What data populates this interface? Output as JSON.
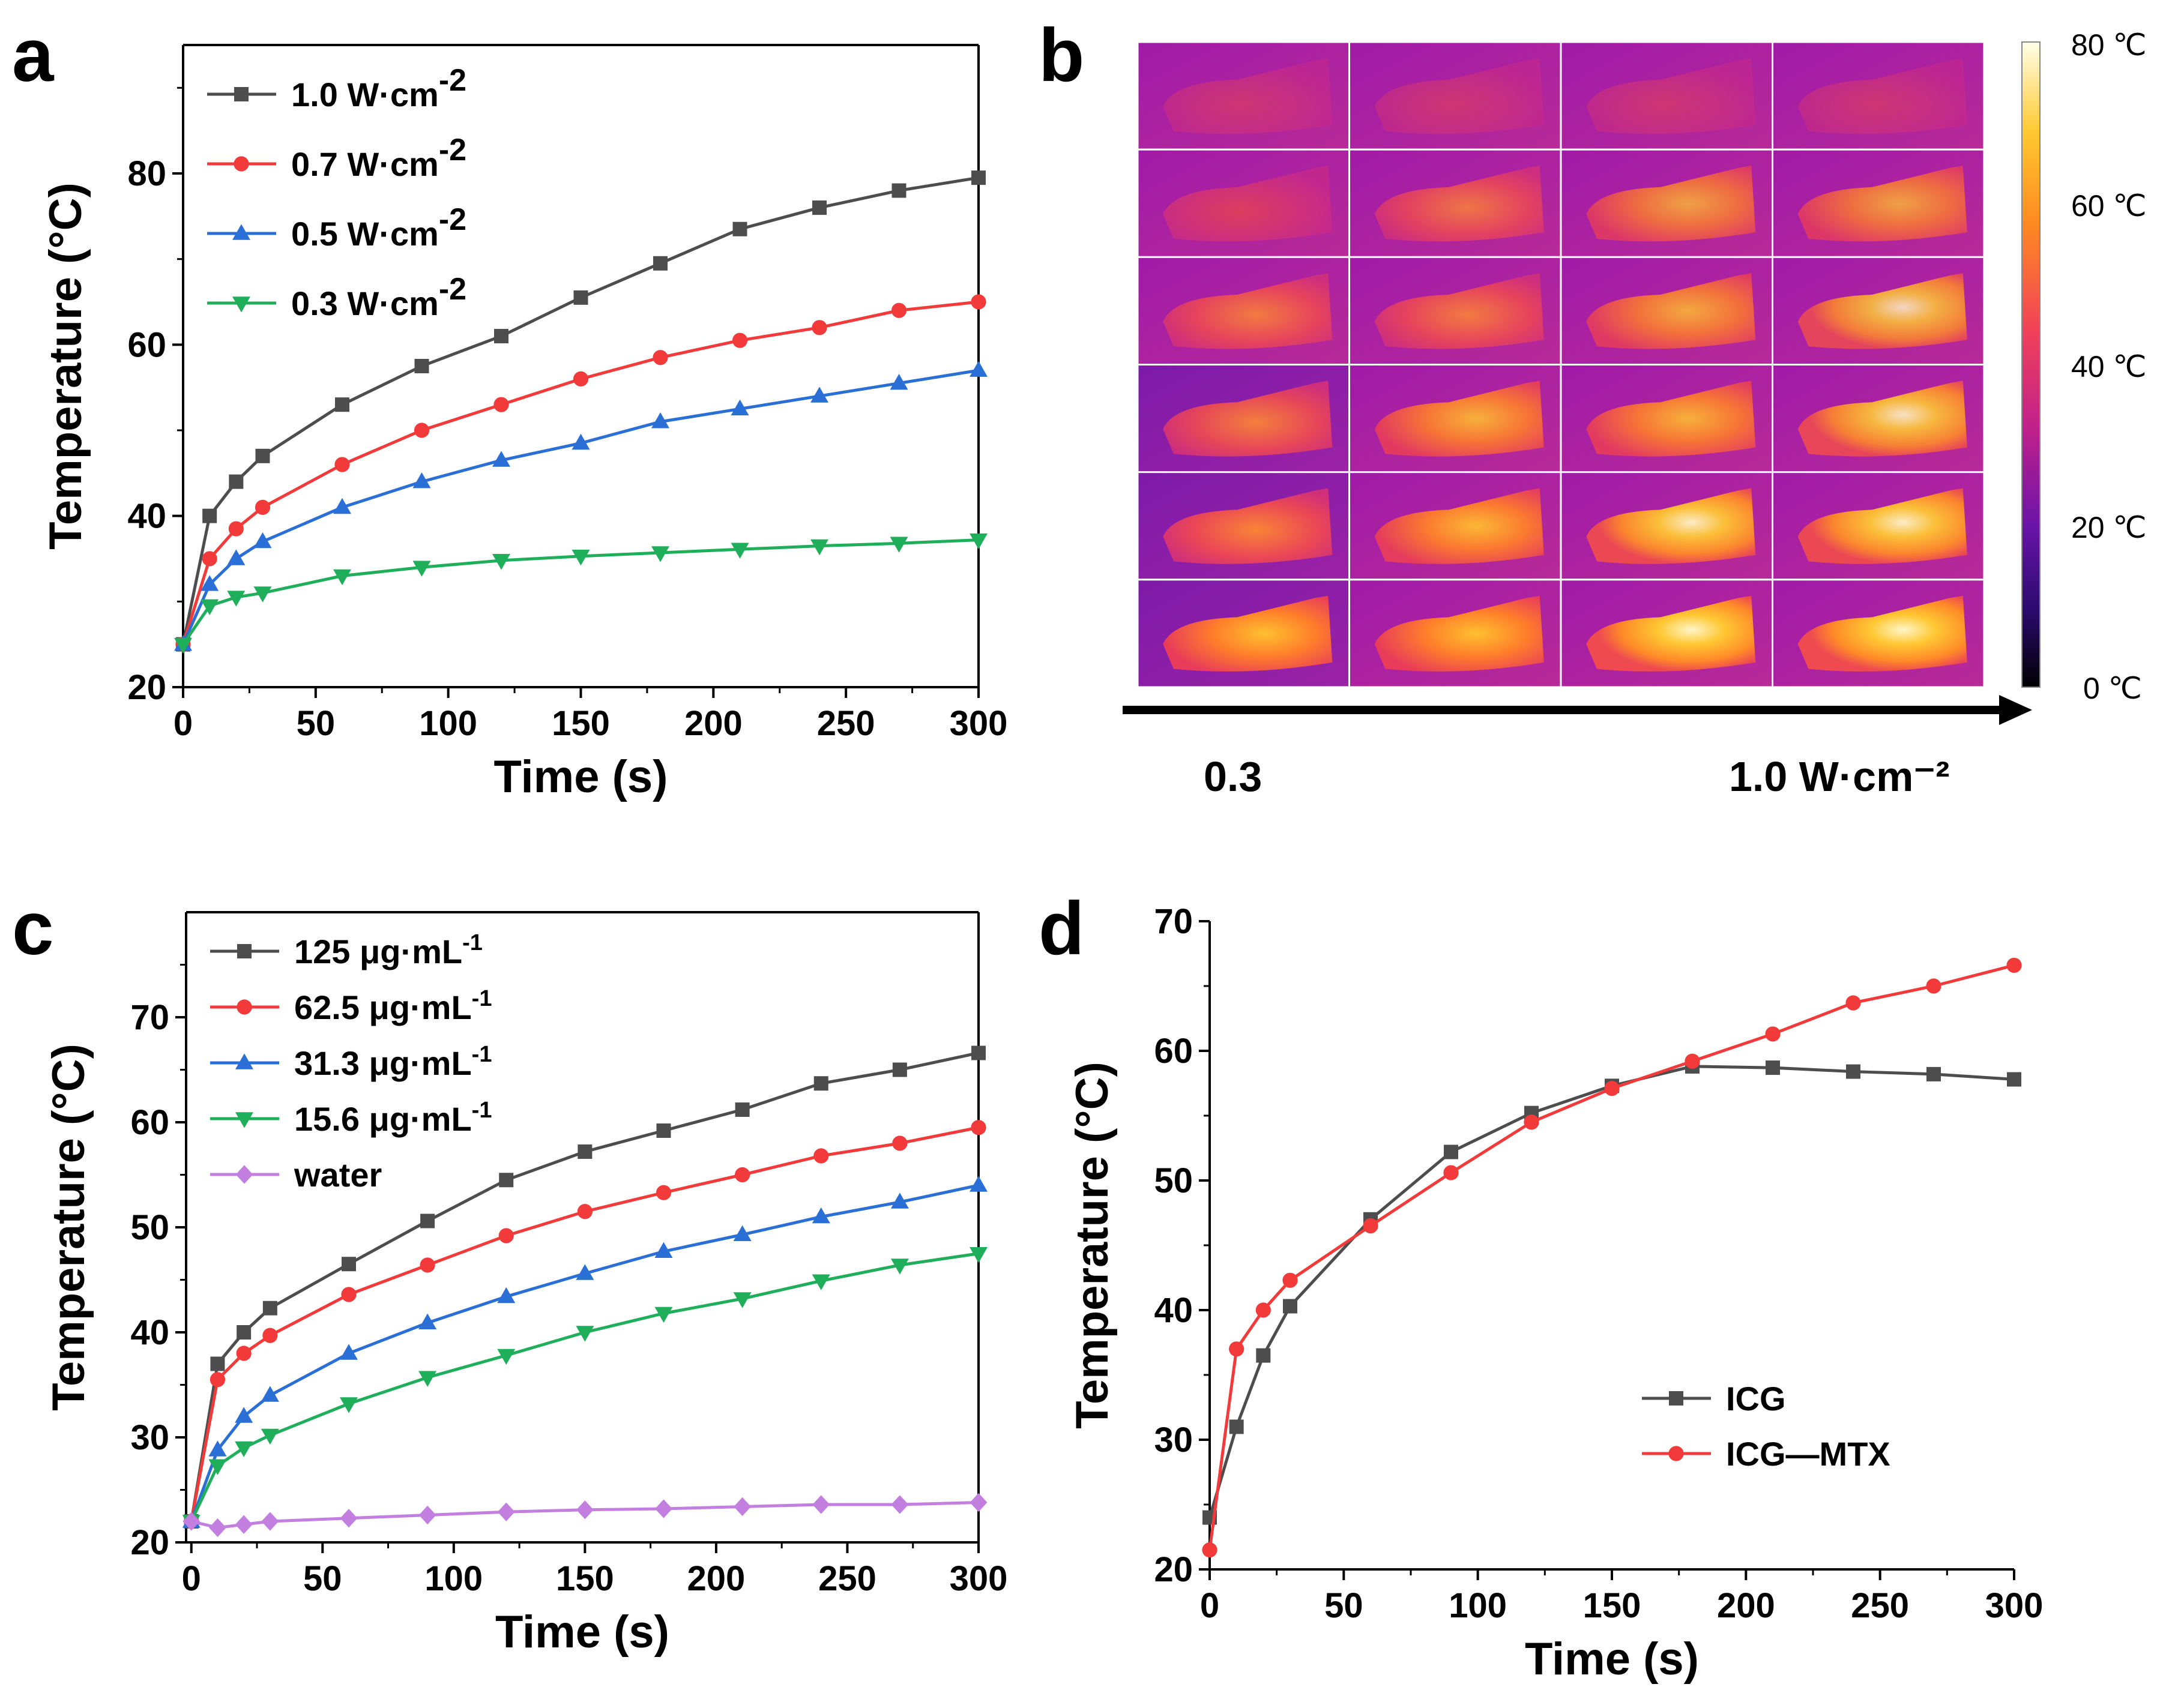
{
  "panels": {
    "a": {
      "label": "a"
    },
    "b": {
      "label": "b",
      "colorbar_ticks": [
        "80 ℃",
        "60 ℃",
        "40 ℃",
        "20 ℃",
        "0 ℃"
      ],
      "colorbar_range": [
        0,
        80
      ],
      "grid_rows": 6,
      "grid_cols": 4,
      "power_start": "0.3",
      "power_end": "1.0 W·cm⁻²",
      "colors": {
        "cold": "#b01a9a",
        "warm": "#e8454e",
        "hot": "#ffb020",
        "hottest": "#fff4c0"
      }
    },
    "c": {
      "label": "c"
    },
    "d": {
      "label": "d"
    }
  },
  "chart_data": [
    {
      "id": "a",
      "type": "line",
      "xlabel": "Time (s)",
      "ylabel": "Temperature (°C)",
      "xlim": [
        0,
        300
      ],
      "ylim": [
        20,
        95
      ],
      "xticks": [
        0,
        50,
        100,
        150,
        200,
        250,
        300
      ],
      "yticks": [
        20,
        40,
        60,
        80
      ],
      "x": [
        0,
        10,
        20,
        30,
        60,
        90,
        120,
        150,
        180,
        210,
        240,
        270,
        300
      ],
      "series": [
        {
          "name": "1.0 W·cm",
          "sup": "-2",
          "color": "#4d4d4d",
          "marker": "square",
          "values": [
            25,
            40,
            44,
            47,
            53,
            57.5,
            61,
            65.5,
            69.5,
            73.5,
            76,
            78,
            79.5
          ]
        },
        {
          "name": "0.7 W·cm",
          "sup": "-2",
          "color": "#f23a3a",
          "marker": "circle",
          "values": [
            25,
            35,
            38.5,
            41,
            46,
            50,
            53,
            56,
            58.5,
            60.5,
            62,
            64,
            65
          ]
        },
        {
          "name": "0.5 W·cm",
          "sup": "-2",
          "color": "#2a6fd6",
          "marker": "triangle-up",
          "values": [
            25,
            32,
            35,
            37,
            41,
            44,
            46.5,
            48.5,
            51,
            52.5,
            54,
            55.5,
            57
          ]
        },
        {
          "name": "0.3 W·cm",
          "sup": "-2",
          "color": "#1fae5a",
          "marker": "triangle-down",
          "values": [
            25,
            29.5,
            30.5,
            31,
            33,
            34,
            34.8,
            35.3,
            35.7,
            36.1,
            36.5,
            36.8,
            37.2
          ]
        }
      ]
    },
    {
      "id": "c",
      "type": "line",
      "xlabel": "Time (s)",
      "ylabel": "Temperature (°C)",
      "xlim": [
        -2,
        300
      ],
      "ylim": [
        20,
        80
      ],
      "xticks": [
        0,
        50,
        100,
        150,
        200,
        250,
        300
      ],
      "yticks": [
        20,
        30,
        40,
        50,
        60,
        70
      ],
      "x": [
        0,
        10,
        20,
        30,
        60,
        90,
        120,
        150,
        180,
        210,
        240,
        270,
        300
      ],
      "series": [
        {
          "name": "125 μg·mL",
          "sup": "-1",
          "color": "#4d4d4d",
          "marker": "square",
          "values": [
            22,
            37,
            40,
            42.3,
            46.5,
            50.6,
            54.5,
            57.2,
            59.2,
            61.2,
            63.7,
            65,
            66.6
          ]
        },
        {
          "name": "62.5 μg·mL",
          "sup": "-1",
          "color": "#f23a3a",
          "marker": "circle",
          "values": [
            22,
            35.5,
            38,
            39.7,
            43.6,
            46.4,
            49.2,
            51.5,
            53.3,
            55,
            56.8,
            58,
            59.5
          ]
        },
        {
          "name": "31.3 μg·mL",
          "sup": "-1",
          "color": "#2a6fd6",
          "marker": "triangle-up",
          "values": [
            22,
            28.8,
            32,
            34,
            38,
            40.9,
            43.4,
            45.6,
            47.7,
            49.3,
            51,
            52.4,
            54
          ]
        },
        {
          "name": "15.6 μg·mL",
          "sup": "-1",
          "color": "#1fae5a",
          "marker": "triangle-down",
          "values": [
            22,
            27.3,
            29,
            30.2,
            33.2,
            35.7,
            37.8,
            40,
            41.8,
            43.2,
            44.9,
            46.4,
            47.5
          ]
        },
        {
          "name": "water",
          "sup": "",
          "color": "#c27fe0",
          "marker": "diamond",
          "values": [
            22,
            21.4,
            21.7,
            22,
            22.3,
            22.6,
            22.9,
            23.1,
            23.2,
            23.4,
            23.6,
            23.6,
            23.8
          ]
        }
      ]
    },
    {
      "id": "d",
      "type": "line",
      "xlabel": "Time (s)",
      "ylabel": "Temperature (°C)",
      "xlim": [
        0,
        300
      ],
      "ylim": [
        20,
        70
      ],
      "xticks": [
        0,
        50,
        100,
        150,
        200,
        250,
        300
      ],
      "yticks": [
        20,
        30,
        40,
        50,
        60,
        70
      ],
      "x": [
        0,
        10,
        20,
        30,
        60,
        90,
        120,
        150,
        180,
        210,
        240,
        270,
        300
      ],
      "series": [
        {
          "name": "ICG",
          "sup": "",
          "color": "#4d4d4d",
          "marker": "square",
          "values": [
            24,
            31,
            36.5,
            40.3,
            47,
            52.2,
            55.2,
            57.3,
            58.8,
            58.7,
            58.4,
            58.2,
            57.8
          ]
        },
        {
          "name": "ICG—MTX",
          "sup": "",
          "color": "#f23a3a",
          "marker": "circle",
          "values": [
            21.5,
            37,
            40,
            42.3,
            46.5,
            50.6,
            54.5,
            57.1,
            59.2,
            61.3,
            63.7,
            65,
            66.6
          ]
        }
      ]
    }
  ]
}
